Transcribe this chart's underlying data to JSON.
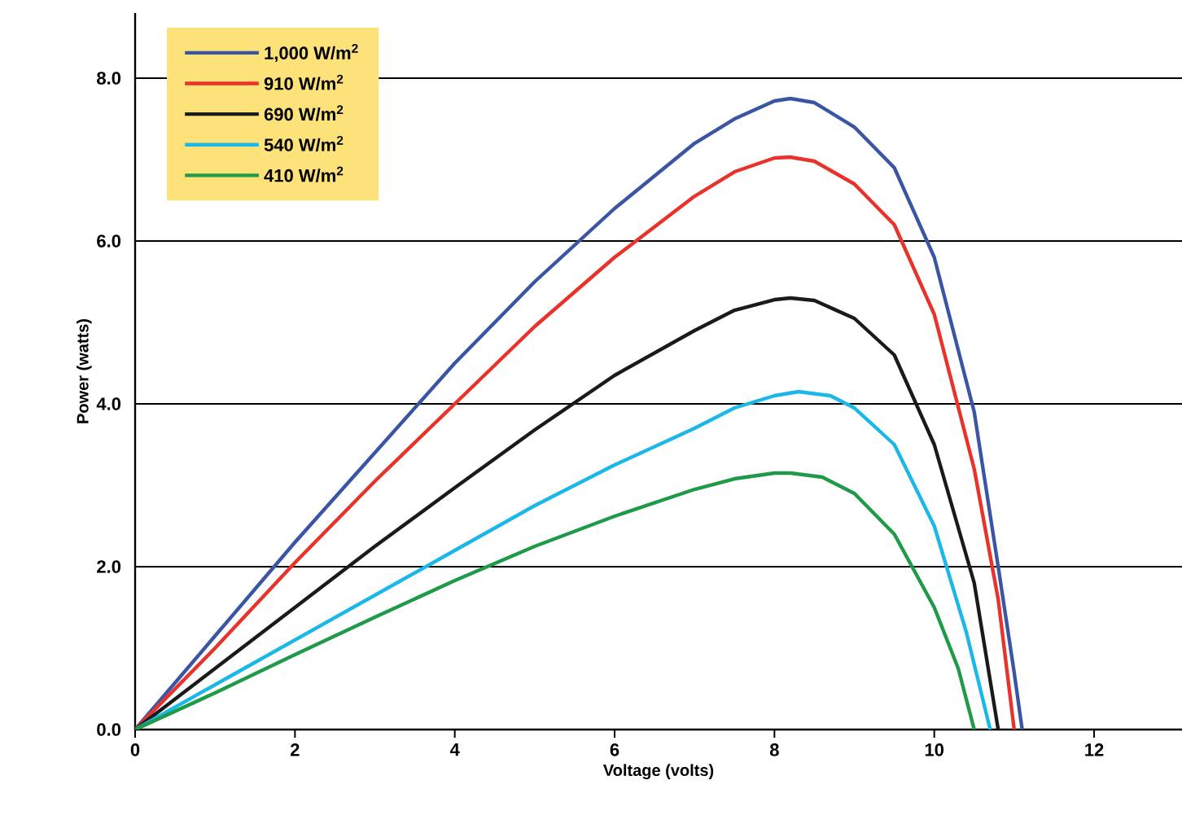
{
  "chart_data": {
    "type": "line",
    "xlabel": "Voltage (volts)",
    "ylabel": "Power (watts)",
    "xlim": [
      0,
      13.1
    ],
    "ylim": [
      0,
      8.8
    ],
    "xticks": [
      0,
      2,
      4,
      6,
      8,
      10,
      12
    ],
    "yticks": [
      {
        "value": 0,
        "label": "0.0"
      },
      {
        "value": 2,
        "label": "2.0"
      },
      {
        "value": 4,
        "label": "4.0"
      },
      {
        "value": 6,
        "label": "6.0"
      },
      {
        "value": 8,
        "label": "8.0"
      }
    ],
    "grid": "y",
    "legend": "top left",
    "marker": "none",
    "line_style": "solid",
    "series": [
      {
        "name": "1,000 W/m$^{2}$",
        "color": "#3a55a4",
        "x": [
          0,
          1,
          2,
          3,
          4,
          5,
          6,
          7,
          7.5,
          8,
          8.2,
          8.5,
          9,
          9.5,
          10,
          10.5,
          10.8,
          11.0,
          11.1
        ],
        "values": [
          0,
          1.15,
          2.3,
          3.4,
          4.5,
          5.5,
          6.4,
          7.2,
          7.5,
          7.72,
          7.75,
          7.7,
          7.4,
          6.9,
          5.8,
          3.9,
          2.0,
          0.7,
          0
        ]
      },
      {
        "name": "910 W/m$^{2}$",
        "color": "#e8322a",
        "x": [
          0,
          1,
          2,
          3,
          4,
          5,
          6,
          7,
          7.5,
          8,
          8.2,
          8.5,
          9,
          9.5,
          10,
          10.5,
          10.8,
          11.0
        ],
        "values": [
          0,
          1.0,
          2.05,
          3.05,
          4.0,
          4.95,
          5.8,
          6.55,
          6.85,
          7.02,
          7.03,
          6.98,
          6.7,
          6.2,
          5.1,
          3.2,
          1.6,
          0
        ]
      },
      {
        "name": "690 W/m$^{2}$",
        "color": "#1a1a1a",
        "x": [
          0,
          1,
          2,
          3,
          4,
          5,
          6,
          7,
          7.5,
          8,
          8.2,
          8.5,
          9,
          9.5,
          10,
          10.5,
          10.8
        ],
        "values": [
          0,
          0.75,
          1.5,
          2.25,
          2.97,
          3.68,
          4.35,
          4.9,
          5.15,
          5.28,
          5.3,
          5.27,
          5.05,
          4.6,
          3.5,
          1.8,
          0
        ]
      },
      {
        "name": "540 W/m$^{2}$",
        "color": "#1ab8e8",
        "x": [
          0,
          1,
          2,
          3,
          4,
          5,
          6,
          7,
          7.5,
          8,
          8.3,
          8.7,
          9,
          9.5,
          10,
          10.4,
          10.7
        ],
        "values": [
          0,
          0.55,
          1.1,
          1.65,
          2.2,
          2.75,
          3.25,
          3.7,
          3.95,
          4.1,
          4.15,
          4.1,
          3.95,
          3.5,
          2.5,
          1.2,
          0
        ]
      },
      {
        "name": "410 W/m$^{2}$",
        "color": "#1e9a48",
        "x": [
          0,
          1,
          2,
          3,
          4,
          5,
          6,
          7,
          7.5,
          8,
          8.2,
          8.6,
          9,
          9.5,
          10,
          10.3,
          10.5
        ],
        "values": [
          0,
          0.45,
          0.92,
          1.38,
          1.83,
          2.25,
          2.62,
          2.95,
          3.08,
          3.15,
          3.15,
          3.1,
          2.9,
          2.4,
          1.5,
          0.75,
          0
        ]
      }
    ]
  }
}
